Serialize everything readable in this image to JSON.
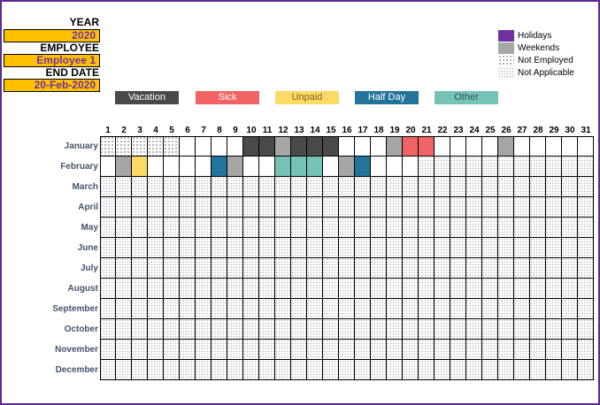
{
  "info": {
    "year_label": "YEAR",
    "year_value": "2020",
    "employee_label": "EMPLOYEE",
    "employee_value": "Employee 1",
    "end_date_label": "END DATE",
    "end_date_value": "20-Feb-2020"
  },
  "categories": [
    {
      "label": "Vacation",
      "color": "#4a4a4a",
      "text_color": "#ffffff"
    },
    {
      "label": "Sick",
      "color": "#f26463",
      "text_color": "#ffffff"
    },
    {
      "label": "Unpaid",
      "color": "#fdda66",
      "text_color": "#7f6a20"
    },
    {
      "label": "Half Day",
      "color": "#22749a",
      "text_color": "#ffffff"
    },
    {
      "label": "Other",
      "color": "#76c2b7",
      "text_color": "#2a5a53"
    }
  ],
  "legend": [
    {
      "label": "Holidays",
      "swatch": "purple",
      "color": "#7030a0"
    },
    {
      "label": "Weekends",
      "swatch": "gray",
      "color": "#a6a6a6"
    },
    {
      "label": "Not Employed",
      "swatch": "dots-dark"
    },
    {
      "label": "Not Applicable",
      "swatch": "dots-light"
    }
  ],
  "days": [
    "1",
    "2",
    "3",
    "4",
    "5",
    "6",
    "7",
    "8",
    "9",
    "10",
    "11",
    "12",
    "13",
    "14",
    "15",
    "16",
    "17",
    "18",
    "19",
    "20",
    "21",
    "22",
    "23",
    "24",
    "25",
    "26",
    "27",
    "28",
    "29",
    "30",
    "31"
  ],
  "months": [
    "January",
    "February",
    "March",
    "April",
    "May",
    "June",
    "July",
    "August",
    "September",
    "October",
    "November",
    "December"
  ],
  "colors": {
    "vacation": "#4a4a4a",
    "sick": "#f26463",
    "unpaid": "#fdda66",
    "halfday": "#22749a",
    "other": "#76c2b7",
    "weekend": "#a6a6a6",
    "holiday": "#7030a0",
    "info_value_bg": "#ffc000",
    "info_value_text": "#7030a0",
    "month_label": "#44546a",
    "frame": "#5b2a8e"
  },
  "marks": [
    {
      "month": 1,
      "days": [
        1,
        2,
        3,
        4,
        5
      ],
      "type": "not-employed"
    },
    {
      "month": 1,
      "days": [
        10,
        11,
        13,
        14,
        15
      ],
      "type": "vacation"
    },
    {
      "month": 1,
      "days": [
        12,
        19,
        26
      ],
      "type": "weekend"
    },
    {
      "month": 1,
      "days": [
        20,
        21
      ],
      "type": "sick"
    },
    {
      "month": 2,
      "days": [
        2,
        9,
        16
      ],
      "type": "weekend"
    },
    {
      "month": 2,
      "days": [
        3
      ],
      "type": "unpaid"
    },
    {
      "month": 2,
      "days": [
        8,
        17
      ],
      "type": "halfday"
    },
    {
      "month": 2,
      "days": [
        12,
        13,
        14
      ],
      "type": "other"
    },
    {
      "month": 2,
      "days_from": 21,
      "days_to": 31,
      "type": "not-applicable"
    },
    {
      "months_from": 3,
      "months_to": 12,
      "days_from": 1,
      "days_to": 31,
      "type": "not-applicable"
    }
  ]
}
